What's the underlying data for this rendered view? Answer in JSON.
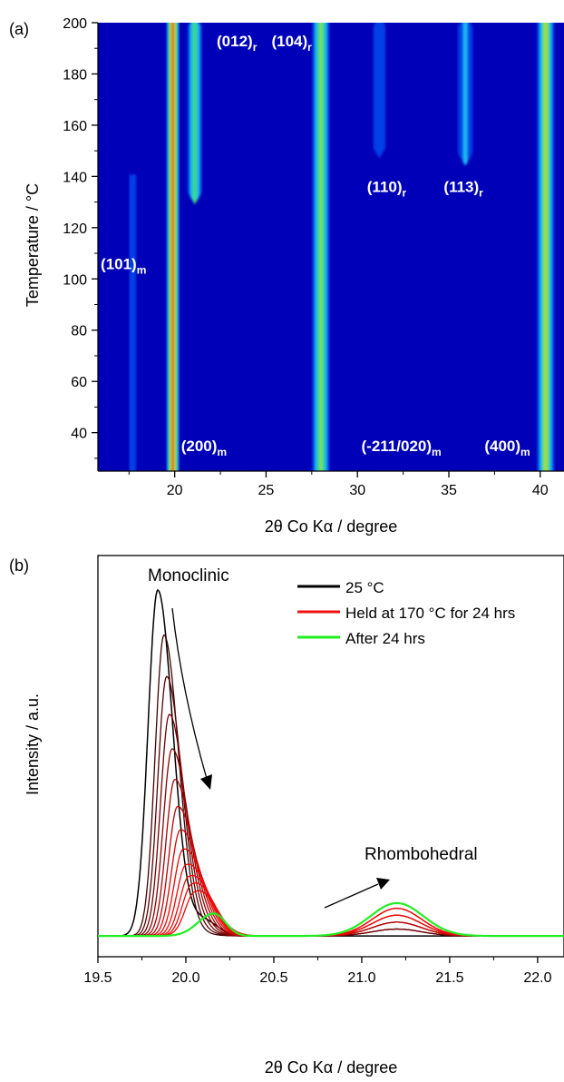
{
  "chart_data": [
    {
      "panel_label": "(a)",
      "type": "heatmap",
      "xlabel": "2θ Co Kα / degree",
      "ylabel": "Temperature / °C",
      "xlim": [
        15.8,
        41.3
      ],
      "ylim": [
        25,
        200
      ],
      "xticks": [
        "20",
        "25",
        "30",
        "35",
        "40"
      ],
      "xtick_values": [
        20,
        25,
        30,
        35,
        40
      ],
      "yticks": [
        "40",
        "60",
        "80",
        "100",
        "120",
        "140",
        "160",
        "180",
        "200"
      ],
      "ytick_values": [
        40,
        60,
        80,
        100,
        120,
        140,
        160,
        180,
        200
      ],
      "colormap": [
        "#0000b8",
        "#0040e6",
        "#1fb6f0",
        "#37d98a",
        "#9be03a",
        "#f0c020",
        "#e02010"
      ],
      "reflections": [
        {
          "name": "(101)",
          "subscript": "m",
          "x": 17.7,
          "t_from": 25,
          "t_to": 140,
          "peak": 0.12
        },
        {
          "name": "(200)",
          "subscript": "m",
          "x": 19.9,
          "t_from": 25,
          "t_to": 200,
          "peak": 1.0
        },
        {
          "name": "(012)",
          "subscript": "r",
          "x": 21.1,
          "t_from": 130,
          "t_to": 200,
          "peak": 0.55
        },
        {
          "name": "(104)",
          "subscript": "r",
          "x": 21.1,
          "t_from": 130,
          "t_to": 200,
          "peak": 0.55
        },
        {
          "name": "(-211/020)",
          "subscript": "m",
          "x": 28.0,
          "t_from": 25,
          "t_to": 200,
          "peak": 0.6
        },
        {
          "name": "(110)",
          "subscript": "r",
          "x": 31.2,
          "t_from": 148,
          "t_to": 200,
          "peak": 0.22
        },
        {
          "name": "(113)",
          "subscript": "r",
          "x": 35.9,
          "t_from": 145,
          "t_to": 200,
          "peak": 0.3
        },
        {
          "name": "(400)",
          "subscript": "m",
          "x": 40.3,
          "t_from": 25,
          "t_to": 200,
          "peak": 0.7
        }
      ],
      "annotations": [
        {
          "text": "(101)",
          "sub": "m",
          "x": 17.2,
          "y": 106
        },
        {
          "text": "(200)",
          "sub": "m",
          "x": 21.6,
          "y": 35
        },
        {
          "text": "(012)",
          "sub": "r",
          "x": 23.4,
          "y": 193
        },
        {
          "text": "(104)",
          "sub": "r",
          "x": 26.4,
          "y": 193
        },
        {
          "text": "(-211/020)",
          "sub": "m",
          "x": 32.4,
          "y": 35
        },
        {
          "text": "(110)",
          "sub": "r",
          "x": 31.6,
          "y": 136
        },
        {
          "text": "(113)",
          "sub": "r",
          "x": 35.8,
          "y": 136
        },
        {
          "text": "(400)",
          "sub": "m",
          "x": 38.2,
          "y": 35
        }
      ]
    },
    {
      "panel_label": "(b)",
      "type": "line",
      "xlabel": "2θ Co Kα / degree",
      "ylabel": "Intensity / a.u.",
      "xlim": [
        19.5,
        22.15
      ],
      "ylim": [
        -0.06,
        1.1
      ],
      "xticks": [
        "19.5",
        "20.0",
        "20.5",
        "21.0",
        "21.5",
        "22.0"
      ],
      "xtick_values": [
        19.5,
        20.0,
        20.5,
        21.0,
        21.5,
        22.0
      ],
      "legend_position": "top-right",
      "legend": [
        {
          "label": "25 °C",
          "color": "#000000"
        },
        {
          "label": "Held at 170 °C for 24 hrs",
          "color": "#ee1111"
        },
        {
          "label": "After 24 hrs",
          "color": "#22ee22"
        }
      ],
      "annotations": [
        "Monoclinic",
        "Rhombohedral"
      ],
      "series": [
        {
          "name": "25 °C",
          "monoclinic_peak": {
            "x": 19.84,
            "y": 1.0
          },
          "rhombohedral_peak": {
            "x": 21.2,
            "y": 0.0
          }
        },
        {
          "name": "Held at 170 °C for 24 hrs",
          "monoclinic_peak_heights": [
            0.87,
            0.75,
            0.64,
            0.54,
            0.45,
            0.37,
            0.3,
            0.24,
            0.19,
            0.15,
            0.12,
            0.09
          ],
          "rhombohedral_peak_heights": [
            0.02,
            0.04,
            0.06,
            0.08
          ]
        },
        {
          "name": "After 24 hrs",
          "monoclinic_peak": {
            "x": 20.16,
            "y": 0.065
          },
          "rhombohedral_peak": {
            "x": 21.2,
            "y": 0.095
          }
        }
      ]
    }
  ]
}
